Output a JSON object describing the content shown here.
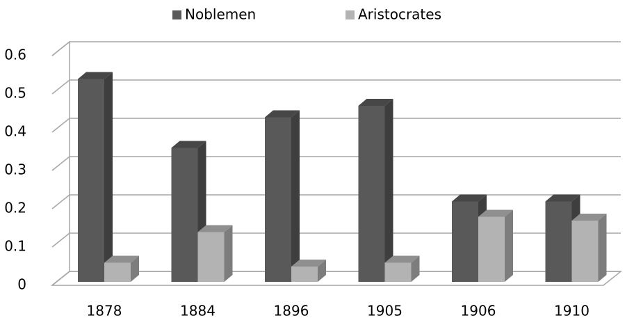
{
  "chart_data": {
    "type": "bar3d",
    "categories": [
      "1878",
      "1884",
      "1896",
      "1905",
      "1906",
      "1910"
    ],
    "series": [
      {
        "name": "Noblemen",
        "color": "#595959",
        "values": [
          0.53,
          0.35,
          0.43,
          0.46,
          0.21,
          0.21
        ]
      },
      {
        "name": "Aristocrates",
        "color": "#b3b3b3",
        "values": [
          0.05,
          0.13,
          0.04,
          0.05,
          0.17,
          0.16
        ]
      }
    ],
    "ylim": [
      0,
      0.6
    ],
    "yticks": [
      0,
      0.1,
      0.2,
      0.3,
      0.4,
      0.5,
      0.6
    ],
    "grid": true,
    "legend": "top"
  }
}
